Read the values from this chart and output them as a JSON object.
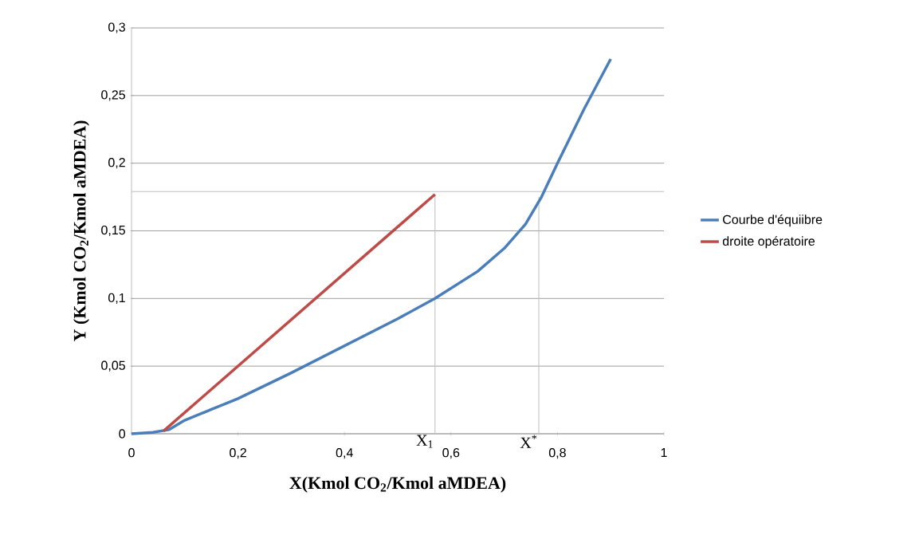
{
  "chart_data": {
    "type": "line",
    "xlabel": "X(Kmol CO$_{2}$/Kmol aMDEA)",
    "ylabel": "Y (Kmol CO$_{2}$/Kmol aMDEA)",
    "series": [
      {
        "name": "Courbe d'équiibre",
        "color": "#4a7ebb",
        "x": [
          0,
          0.04,
          0.07,
          0.1,
          0.15,
          0.2,
          0.3,
          0.4,
          0.5,
          0.57,
          0.65,
          0.7,
          0.74,
          0.77,
          0.8,
          0.85,
          0.9
        ],
        "values": [
          0,
          0.001,
          0.003,
          0.01,
          0.018,
          0.026,
          0.045,
          0.065,
          0.085,
          0.1,
          0.12,
          0.137,
          0.155,
          0.175,
          0.2,
          0.24,
          0.277
        ]
      },
      {
        "name": "droite opératoire",
        "color": "#be4b48",
        "x": [
          0.06,
          0.57
        ],
        "values": [
          0.002,
          0.177
        ]
      }
    ],
    "xlim": [
      0,
      1
    ],
    "ylim": [
      0,
      0.3
    ],
    "xticks": [
      0,
      {
        "value": 0.2,
        "label": "0,2"
      },
      {
        "value": 0.4,
        "label": "0,4"
      },
      {
        "value": 0.6,
        "label": "0,6"
      },
      {
        "value": 0.8,
        "label": "0,8"
      },
      1
    ],
    "yticks": [
      0,
      {
        "value": 0.05,
        "label": "0,05"
      },
      {
        "value": 0.1,
        "label": "0,1"
      },
      {
        "value": 0.15,
        "label": "0,15"
      },
      {
        "value": 0.2,
        "label": "0,2"
      },
      {
        "value": 0.25,
        "label": "0,25"
      },
      {
        "value": 0.3,
        "label": "0,3"
      }
    ],
    "ref_lines": [
      {
        "axis": "y",
        "value": 0.179,
        "color": "#c0c0c0"
      }
    ],
    "annotations": [
      {
        "text": "X$_{1}$",
        "x": 0.57,
        "y": 0.177
      },
      {
        "text": "X$^{*}$",
        "x": 0.765,
        "y": 0.175
      }
    ],
    "grid": "y",
    "legend": "right",
    "marker": "none",
    "line_style": "solid"
  }
}
